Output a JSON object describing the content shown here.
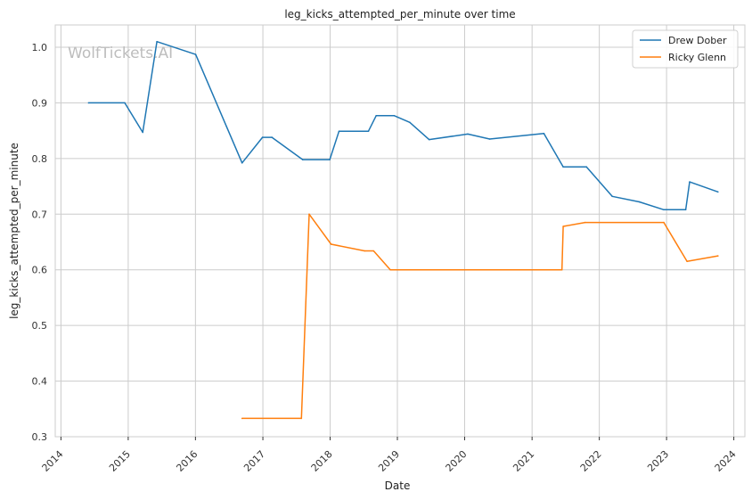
{
  "chart_data": {
    "type": "line",
    "title": "leg_kicks_attempted_per_minute over time",
    "xlabel": "Date",
    "ylabel": "leg_kicks_attempted_per_minute",
    "watermark": "WolfTickets.AI",
    "x_type": "date",
    "xlim": [
      "2013-12-01",
      "2024-03-01"
    ],
    "ylim": [
      0.3,
      1.04
    ],
    "x_ticks": [
      "2014",
      "2015",
      "2016",
      "2017",
      "2018",
      "2019",
      "2020",
      "2021",
      "2022",
      "2023",
      "2024"
    ],
    "y_ticks": [
      "0.3",
      "0.4",
      "0.5",
      "0.6",
      "0.7",
      "0.8",
      "0.9",
      "1.0"
    ],
    "grid": true,
    "legend_position": "top-right",
    "series": [
      {
        "name": "Drew Dober",
        "color": "#1f77b4",
        "points": [
          [
            "2014-05-31",
            0.9
          ],
          [
            "2014-12-13",
            0.9
          ],
          [
            "2015-03-21",
            0.847
          ],
          [
            "2015-06-06",
            1.01
          ],
          [
            "2016-01-02",
            0.987
          ],
          [
            "2016-09-10",
            0.792
          ],
          [
            "2016-12-30",
            0.838
          ],
          [
            "2017-02-19",
            0.838
          ],
          [
            "2017-08-05",
            0.798
          ],
          [
            "2017-12-30",
            0.798
          ],
          [
            "2018-02-18",
            0.849
          ],
          [
            "2018-07-28",
            0.849
          ],
          [
            "2018-09-08",
            0.877
          ],
          [
            "2018-12-15",
            0.877
          ],
          [
            "2019-03-09",
            0.865
          ],
          [
            "2019-06-22",
            0.834
          ],
          [
            "2020-01-18",
            0.844
          ],
          [
            "2020-05-16",
            0.835
          ],
          [
            "2021-03-06",
            0.845
          ],
          [
            "2021-06-19",
            0.785
          ],
          [
            "2021-10-23",
            0.785
          ],
          [
            "2022-03-12",
            0.732
          ],
          [
            "2022-08-06",
            0.722
          ],
          [
            "2022-12-17",
            0.708
          ],
          [
            "2023-04-15",
            0.708
          ],
          [
            "2023-05-06",
            0.758
          ],
          [
            "2023-10-07",
            0.74
          ]
        ]
      },
      {
        "name": "Ricky Glenn",
        "color": "#ff7f0e",
        "points": [
          [
            "2016-09-10",
            0.333
          ],
          [
            "2017-07-29",
            0.333
          ],
          [
            "2017-09-09",
            0.7
          ],
          [
            "2018-01-06",
            0.646
          ],
          [
            "2018-07-07",
            0.634
          ],
          [
            "2018-08-25",
            0.634
          ],
          [
            "2018-11-24",
            0.6
          ],
          [
            "2021-06-12",
            0.6
          ],
          [
            "2021-06-19",
            0.678
          ],
          [
            "2021-10-16",
            0.685
          ],
          [
            "2022-12-17",
            0.685
          ],
          [
            "2023-04-22",
            0.615
          ],
          [
            "2023-10-07",
            0.625
          ]
        ]
      }
    ]
  }
}
